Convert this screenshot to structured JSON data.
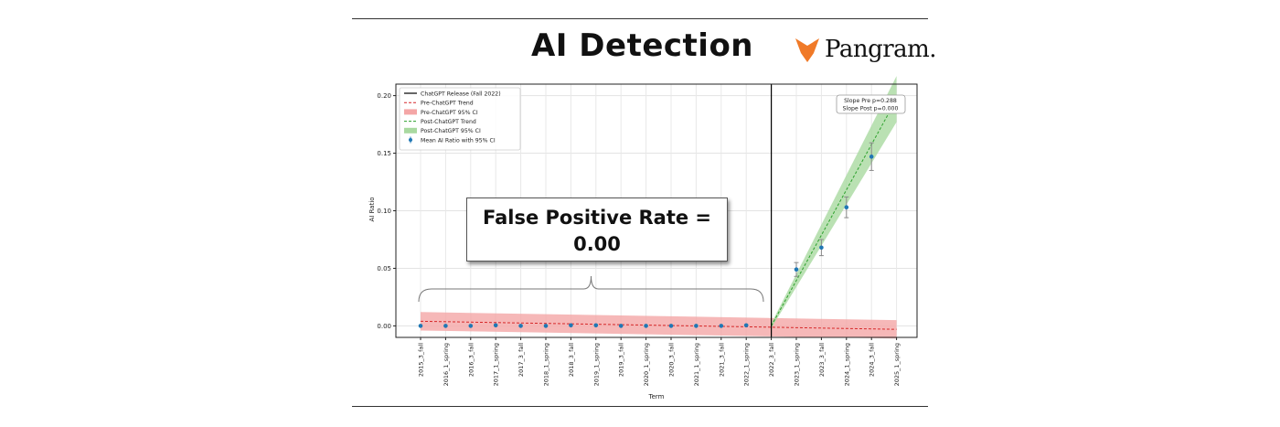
{
  "header": {
    "title": "AI Detection",
    "brand_name": "Pangram.",
    "brand_color": "#f07a28"
  },
  "annotation": {
    "line1": "False Positive Rate =",
    "line2": "0.00"
  },
  "chart_data": {
    "type": "scatter",
    "xlabel": "Term",
    "ylabel": "AI Ratio",
    "ylim": [
      -0.01,
      0.21
    ],
    "yticks": [
      0.0,
      0.05,
      0.1,
      0.15,
      0.2
    ],
    "ytick_labels": [
      "0.00",
      "0.05",
      "0.10",
      "0.15",
      "0.20"
    ],
    "grid": true,
    "legend_position": "top-left",
    "categories": [
      "2015_3_fall",
      "2016_1_spring",
      "2016_3_fall",
      "2017_1_spring",
      "2017_3_fall",
      "2018_1_spring",
      "2018_3_fall",
      "2019_1_spring",
      "2019_3_fall",
      "2020_1_spring",
      "2020_3_fall",
      "2021_1_spring",
      "2021_3_fall",
      "2022_1_spring",
      "2022_3_fall",
      "2023_1_spring",
      "2023_3_fall",
      "2024_1_spring",
      "2024_3_fall",
      "2025_1_spring"
    ],
    "release_index": 14,
    "legend": [
      {
        "label": "ChatGPT Release (Fall 2022)",
        "kind": "vline",
        "color": "#000000"
      },
      {
        "label": "Pre-ChatGPT Trend",
        "kind": "dashed",
        "color": "#d62728"
      },
      {
        "label": "Pre-ChatGPT 95% CI",
        "kind": "band",
        "color": "#f4a6a6"
      },
      {
        "label": "Post-ChatGPT Trend",
        "kind": "dashed",
        "color": "#2ca02c"
      },
      {
        "label": "Post-ChatGPT 95% CI",
        "kind": "band",
        "color": "#a9d9a0"
      },
      {
        "label": "Mean AI Ratio with 95% CI",
        "kind": "point",
        "color": "#1f77b4"
      }
    ],
    "series": [
      {
        "name": "Mean AI Ratio with 95% CI",
        "x_index": [
          0,
          1,
          2,
          3,
          4,
          5,
          6,
          7,
          8,
          9,
          10,
          11,
          12,
          13,
          15,
          16,
          17,
          18
        ],
        "values": [
          0,
          0,
          0,
          0.0005,
          0,
          0,
          0.0005,
          0.0005,
          0,
          0,
          0,
          0,
          0,
          0.0005,
          0.049,
          0.068,
          0.103,
          0.147
        ],
        "error": [
          0,
          0,
          0,
          0,
          0,
          0,
          0,
          0,
          0,
          0,
          0,
          0,
          0,
          0,
          0.006,
          0.007,
          0.009,
          0.012
        ]
      }
    ],
    "pre_trend": {
      "from_index": 0,
      "to_index": 19,
      "start": 0.004,
      "end": -0.003,
      "ci_start": 0.008,
      "ci_end": 0.008
    },
    "post_trend": {
      "from_index": 14,
      "to_index": 19,
      "start": 0.0,
      "end": 0.197,
      "ci_start": 0.002,
      "ci_end": 0.02
    },
    "stats": [
      "Slope Pre p=0.288",
      "Slope Post p=0.000"
    ]
  }
}
